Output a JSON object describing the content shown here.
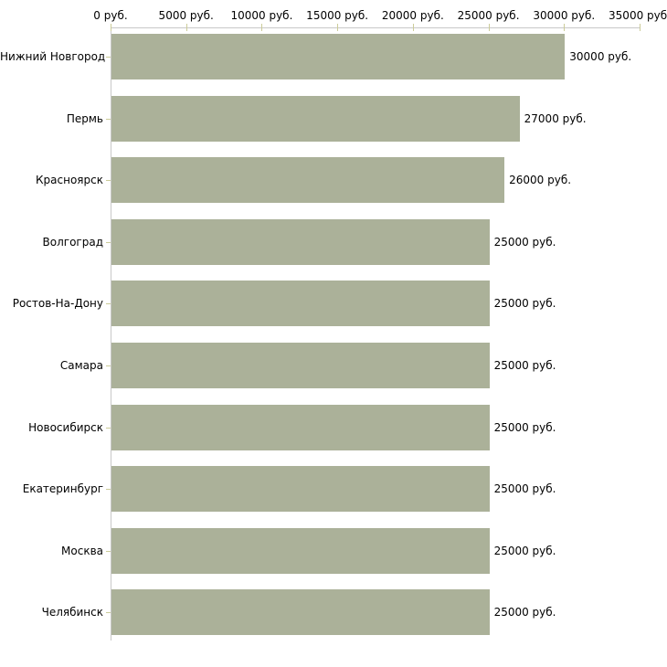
{
  "chart_data": {
    "type": "bar",
    "orientation": "horizontal",
    "title": "",
    "xlabel": "",
    "ylabel": "",
    "unit": "руб.",
    "xlim": [
      0,
      35000
    ],
    "grid": false,
    "legend": false,
    "axis_position": "top",
    "categories": [
      "Нижний Новгород",
      "Пермь",
      "Красноярск",
      "Волгоград",
      "Ростов-На-Дону",
      "Самара",
      "Новосибирск",
      "Екатеринбург",
      "Москва",
      "Челябинск"
    ],
    "values": [
      30000,
      27000,
      26000,
      25000,
      25000,
      25000,
      25000,
      25000,
      25000,
      25000
    ],
    "value_labels": [
      "30000 руб.",
      "27000 руб.",
      "26000 руб.",
      "25000 руб.",
      "25000 руб.",
      "25000 руб.",
      "25000 руб.",
      "25000 руб.",
      "25000 руб.",
      "25000 руб."
    ],
    "x_ticks": [
      0,
      5000,
      10000,
      15000,
      20000,
      25000,
      30000,
      35000
    ],
    "x_tick_labels": [
      "0 руб.",
      "5000 руб.",
      "10000 руб.",
      "15000 руб.",
      "20000 руб.",
      "25000 руб.",
      "30000 руб.",
      "35000 руб."
    ],
    "colors": {
      "bar": "#ABB199",
      "axis_line": "#C8C8C8",
      "tick": "#CCCC99",
      "text": "#000000",
      "background": "#FFFFFF"
    }
  }
}
